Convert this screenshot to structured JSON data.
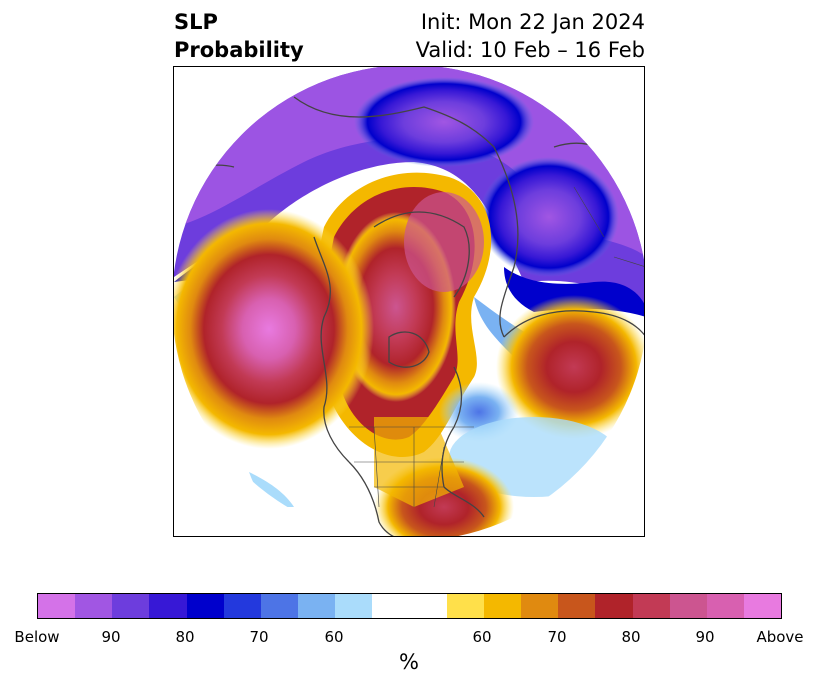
{
  "title": {
    "left_line1": "SLP",
    "left_line2": "Probability",
    "right_line1": "Init: Mon 22 Jan 2024",
    "right_line2": "Valid: 10 Feb – 16 Feb"
  },
  "colorbar": {
    "unit": "%",
    "colors": [
      "#d472e8",
      "#a156e3",
      "#6d3ddd",
      "#3718d6",
      "#0000cc",
      "#2339dd",
      "#4d74e6",
      "#7ab2f2",
      "#aadcfb",
      "#ffffff",
      "#ffffff",
      "#ffe04a",
      "#f4b800",
      "#e08a10",
      "#c8561c",
      "#b0232a",
      "#c23a55",
      "#cc5590",
      "#d860b0",
      "#e87ae0"
    ],
    "tick_labels": [
      "Below",
      "90",
      "80",
      "70",
      "60",
      "60",
      "70",
      "80",
      "90",
      "Above"
    ]
  },
  "map": {
    "projection": "north-polar-stereographic",
    "field": "sea level pressure probability"
  }
}
